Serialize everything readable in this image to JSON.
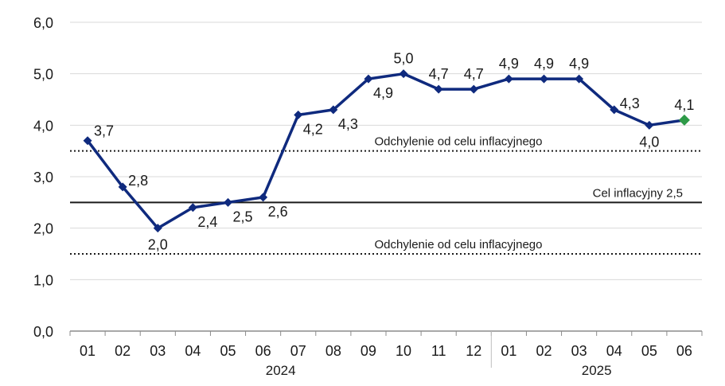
{
  "chart_data": {
    "type": "line",
    "title": "",
    "xlabel": "",
    "ylabel": "",
    "ylim": [
      0,
      6
    ],
    "yticks": [
      "0,0",
      "1,0",
      "2,0",
      "3,0",
      "4,0",
      "5,0",
      "6,0"
    ],
    "grid": true,
    "categories": [
      "01",
      "02",
      "03",
      "04",
      "05",
      "06",
      "07",
      "08",
      "09",
      "10",
      "11",
      "12",
      "01",
      "02",
      "03",
      "04",
      "05",
      "06"
    ],
    "year_groups": [
      {
        "label": "2024",
        "start": 0,
        "end": 11
      },
      {
        "label": "2025",
        "start": 12,
        "end": 17
      }
    ],
    "series": [
      {
        "values": [
          3.7,
          2.8,
          2.0,
          2.4,
          2.5,
          2.6,
          4.2,
          4.3,
          4.9,
          5.0,
          4.7,
          4.7,
          4.9,
          4.9,
          4.9,
          4.3,
          4.0,
          4.1
        ],
        "data_labels": [
          "3,7",
          "2,8",
          "2,0",
          "2,4",
          "2,5",
          "2,6",
          "4,2",
          "4,3",
          "4,9",
          "5,0",
          "4,7",
          "4,7",
          "4,9",
          "4,9",
          "4,9",
          "4,3",
          "4,0",
          "4,1"
        ],
        "color": "#0f2a7e",
        "last_point_color": "#2e9a48"
      }
    ],
    "reference_lines": [
      {
        "value": 3.5,
        "label": "Odchylenie od celu inflacyjnego",
        "style": "dotted"
      },
      {
        "value": 2.5,
        "label": "Cel inflacyjny 2,5",
        "style": "solid"
      },
      {
        "value": 1.5,
        "label": "Odchylenie od celu inflacyjnego",
        "style": "dotted"
      }
    ]
  }
}
